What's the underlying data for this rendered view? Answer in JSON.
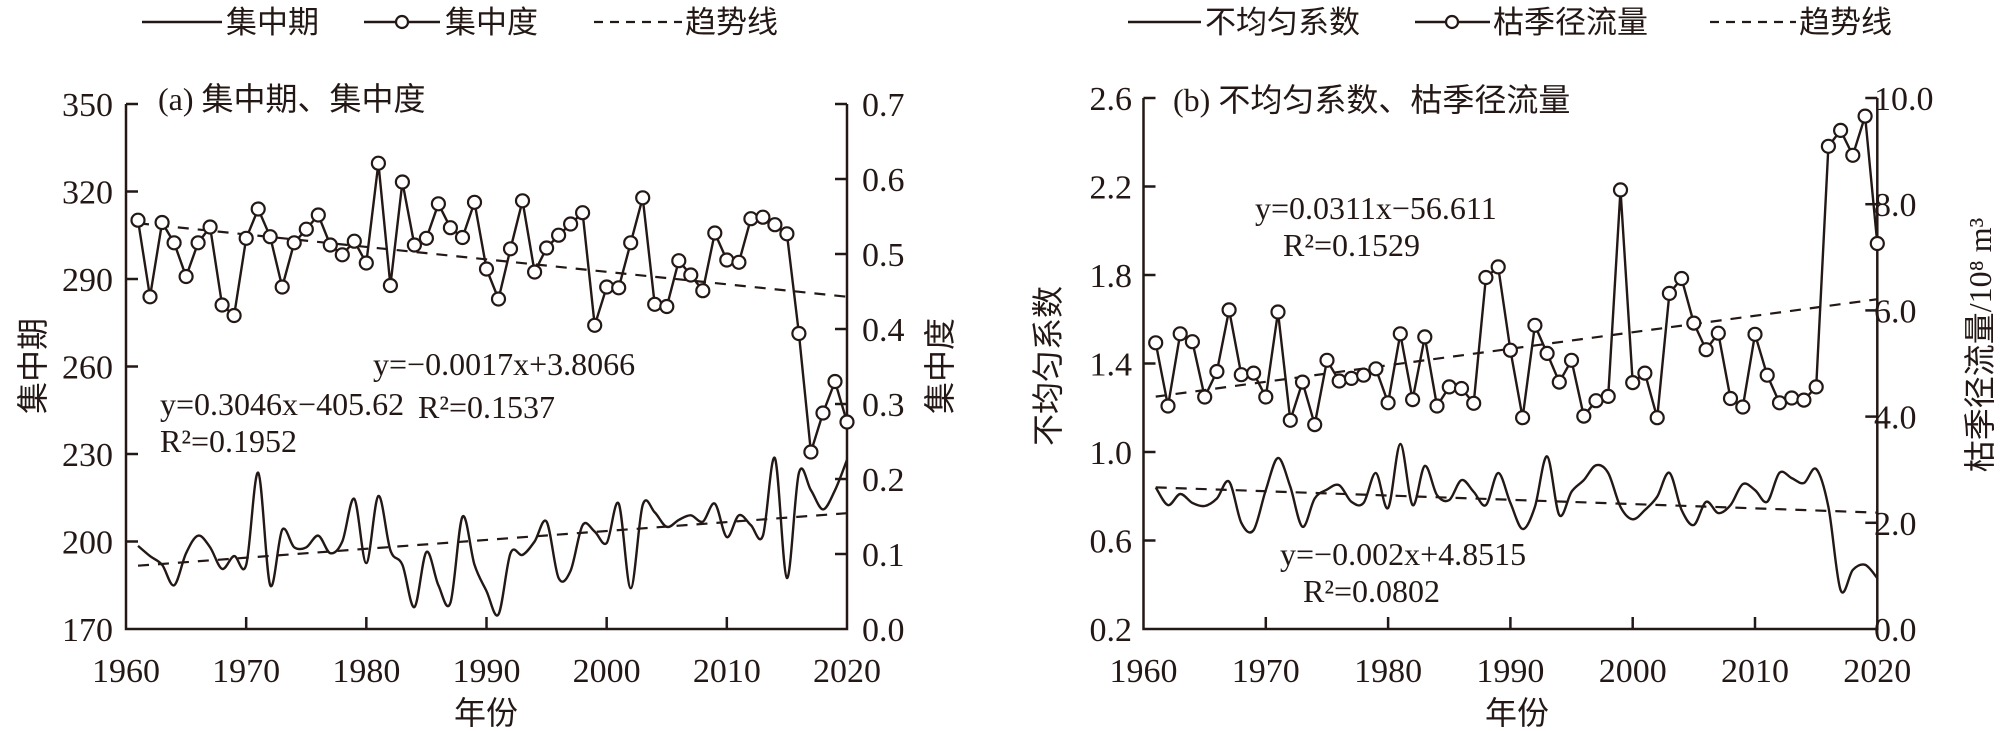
{
  "legends": [
    {
      "items": [
        {
          "label": "集中期",
          "style": "solid"
        },
        {
          "label": "集中度",
          "style": "circle"
        },
        {
          "label": "趋势线",
          "style": "dashed"
        }
      ]
    },
    {
      "items": [
        {
          "label": "不均匀系数",
          "style": "solid"
        },
        {
          "label": "枯季径流量",
          "style": "circle"
        },
        {
          "label": "趋势线",
          "style": "dashed"
        }
      ]
    }
  ],
  "chart_data": [
    {
      "type": "line",
      "title": "(a) 集中期、集中度",
      "xlabel": "年份",
      "ylabel_left": "集中期",
      "ylabel_right": "集中度",
      "xlim": [
        1960,
        2020
      ],
      "x_ticks": [
        1960,
        1970,
        1980,
        1990,
        2000,
        2010,
        2020
      ],
      "x_tick_labels": [
        "1960",
        "1970",
        "1980",
        "1990",
        "2000",
        "2010",
        "2020"
      ],
      "ylim_left": [
        170,
        350
      ],
      "y_left_ticks": [
        170,
        200,
        230,
        260,
        290,
        320,
        350
      ],
      "y_left_tick_labels": [
        "170",
        "200",
        "230",
        "260",
        "290",
        "320",
        "350"
      ],
      "ylim_right": [
        0,
        0.7
      ],
      "y_right_ticks": [
        0,
        0.1,
        0.2,
        0.3,
        0.4,
        0.5,
        0.6,
        0.7
      ],
      "y_right_tick_labels": [
        "0.0",
        "0.1",
        "0.2",
        "0.3",
        "0.4",
        "0.5",
        "0.6",
        "0.7"
      ],
      "grid": false,
      "legend_placement": "top",
      "x": [
        1961,
        1962,
        1963,
        1964,
        1965,
        1966,
        1967,
        1968,
        1969,
        1970,
        1971,
        1972,
        1973,
        1974,
        1975,
        1976,
        1977,
        1978,
        1979,
        1980,
        1981,
        1982,
        1983,
        1984,
        1985,
        1986,
        1987,
        1988,
        1989,
        1990,
        1991,
        1992,
        1993,
        1994,
        1995,
        1996,
        1997,
        1998,
        1999,
        2000,
        2001,
        2002,
        2003,
        2004,
        2005,
        2006,
        2007,
        2008,
        2009,
        2010,
        2011,
        2012,
        2013,
        2014,
        2015,
        2016,
        2017,
        2018,
        2019,
        2020
      ],
      "series": [
        {
          "name": "集中期",
          "axis": "left",
          "style": "solid",
          "values": [
            198.5,
            195,
            192,
            185,
            196,
            202,
            198,
            190.6,
            195,
            192,
            223.6,
            185,
            204,
            198,
            198,
            202,
            196,
            200,
            214.6,
            192.6,
            215.6,
            197,
            192,
            177.5,
            196.4,
            185,
            179,
            208.5,
            192,
            183,
            175,
            196,
            195.4,
            200,
            206.8,
            187.5,
            190,
            205.6,
            203.4,
            199.5,
            213,
            184,
            212.5,
            210,
            205,
            207.4,
            209,
            206.8,
            213,
            201.5,
            209,
            205.6,
            202,
            228.6,
            187.5,
            223.5,
            217.6,
            211,
            217.6,
            228
          ]
        },
        {
          "name": "集中度",
          "axis": "right",
          "style": "circle",
          "values": [
            0.545,
            0.443,
            0.542,
            0.515,
            0.47,
            0.515,
            0.536,
            0.432,
            0.418,
            0.521,
            0.56,
            0.523,
            0.456,
            0.515,
            0.533,
            0.552,
            0.512,
            0.499,
            0.517,
            0.488,
            0.621,
            0.458,
            0.596,
            0.512,
            0.521,
            0.567,
            0.535,
            0.522,
            0.569,
            0.48,
            0.44,
            0.507,
            0.571,
            0.476,
            0.508,
            0.525,
            0.54,
            0.555,
            0.405,
            0.456,
            0.455,
            0.515,
            0.575,
            0.433,
            0.43,
            0.491,
            0.472,
            0.451,
            0.528,
            0.492,
            0.489,
            0.547,
            0.549,
            0.539,
            0.527,
            0.394,
            0.236,
            0.288,
            0.33,
            0.276
          ]
        }
      ],
      "trends": [
        {
          "name": "趋势线",
          "axis": "left",
          "x": [
            1961,
            2020
          ],
          "y": [
            191.7,
            209.7
          ],
          "equation": "y=0.3046x−405.62",
          "r2": "R²=0.1952"
        },
        {
          "name": "趋势线",
          "axis": "right",
          "x": [
            1961,
            2020
          ],
          "y": [
            0.541,
            0.443
          ],
          "equation": "y=−0.0017x+3.8066",
          "r2": "R²=0.1537"
        }
      ]
    },
    {
      "type": "line",
      "title": "(b) 不均匀系数、枯季径流量",
      "xlabel": "年份",
      "ylabel_left": "不均匀系数",
      "ylabel_right": "枯季径流量/10⁸ m³",
      "xlim": [
        1960,
        2020
      ],
      "x_ticks": [
        1960,
        1970,
        1980,
        1990,
        2000,
        2010,
        2020
      ],
      "x_tick_labels": [
        "1960",
        "1970",
        "1980",
        "1990",
        "2000",
        "2010",
        "2020"
      ],
      "ylim_left": [
        0.2,
        2.6
      ],
      "y_left_ticks": [
        0.2,
        0.6,
        1.0,
        1.4,
        1.8,
        2.2,
        2.6
      ],
      "y_left_tick_labels": [
        "0.2",
        "0.6",
        "1.0",
        "1.4",
        "1.8",
        "2.2",
        "2.6"
      ],
      "ylim_right": [
        0,
        10
      ],
      "y_right_ticks": [
        0,
        2,
        4,
        6,
        8,
        10
      ],
      "y_right_tick_labels": [
        "0.0",
        "2.0",
        "4.0",
        "6.0",
        "8.0",
        "10.0"
      ],
      "grid": false,
      "legend_placement": "top",
      "x": [
        1961,
        1962,
        1963,
        1964,
        1965,
        1966,
        1967,
        1968,
        1969,
        1970,
        1971,
        1972,
        1973,
        1974,
        1975,
        1976,
        1977,
        1978,
        1979,
        1980,
        1981,
        1982,
        1983,
        1984,
        1985,
        1986,
        1987,
        1988,
        1989,
        1990,
        1991,
        1992,
        1993,
        1994,
        1995,
        1996,
        1997,
        1998,
        1999,
        2000,
        2001,
        2002,
        2003,
        2004,
        2005,
        2006,
        2007,
        2008,
        2009,
        2010,
        2011,
        2012,
        2013,
        2014,
        2015,
        2016,
        2017,
        2018,
        2019,
        2020
      ],
      "series": [
        {
          "name": "不均匀系数",
          "axis": "left",
          "style": "solid",
          "values": [
            0.84,
            0.76,
            0.81,
            0.77,
            0.756,
            0.79,
            0.866,
            0.68,
            0.647,
            0.828,
            0.973,
            0.843,
            0.662,
            0.79,
            0.83,
            0.85,
            0.775,
            0.77,
            0.905,
            0.747,
            1.036,
            0.76,
            0.937,
            0.805,
            0.783,
            0.873,
            0.82,
            0.76,
            0.905,
            0.77,
            0.652,
            0.752,
            0.98,
            0.715,
            0.82,
            0.873,
            0.94,
            0.905,
            0.752,
            0.696,
            0.738,
            0.798,
            0.906,
            0.738,
            0.67,
            0.775,
            0.724,
            0.76,
            0.855,
            0.828,
            0.775,
            0.906,
            0.882,
            0.86,
            0.923,
            0.752,
            0.376,
            0.467,
            0.49,
            0.43
          ]
        },
        {
          "name": "枯季径流量",
          "axis": "right",
          "style": "circle",
          "values": [
            5.39,
            4.2,
            5.56,
            5.41,
            4.37,
            4.85,
            6.01,
            4.79,
            4.82,
            4.37,
            5.97,
            3.93,
            4.65,
            3.85,
            5.06,
            4.67,
            4.72,
            4.78,
            4.9,
            4.26,
            5.56,
            4.32,
            5.5,
            4.2,
            4.56,
            4.53,
            4.25,
            6.62,
            6.82,
            5.25,
            3.98,
            5.72,
            5.19,
            4.65,
            5.06,
            4.01,
            4.3,
            4.38,
            8.27,
            4.64,
            4.82,
            3.98,
            6.32,
            6.6,
            5.76,
            5.26,
            5.57,
            4.34,
            4.18,
            5.55,
            4.78,
            4.26,
            4.35,
            4.31,
            4.56,
            9.09,
            9.39,
            8.92,
            9.66,
            7.26
          ]
        }
      ],
      "trends": [
        {
          "name": "趋势线",
          "axis": "right",
          "x": [
            1961,
            2020
          ],
          "y": [
            4.376,
            6.21
          ],
          "equation": "y=0.0311x−56.611",
          "r2": "R²=0.1529"
        },
        {
          "name": "趋势线",
          "axis": "left",
          "x": [
            1961,
            2020
          ],
          "y": [
            0.84,
            0.726
          ],
          "equation": "y=−0.002x+4.8515",
          "r2": "R²=0.0802"
        }
      ]
    }
  ]
}
